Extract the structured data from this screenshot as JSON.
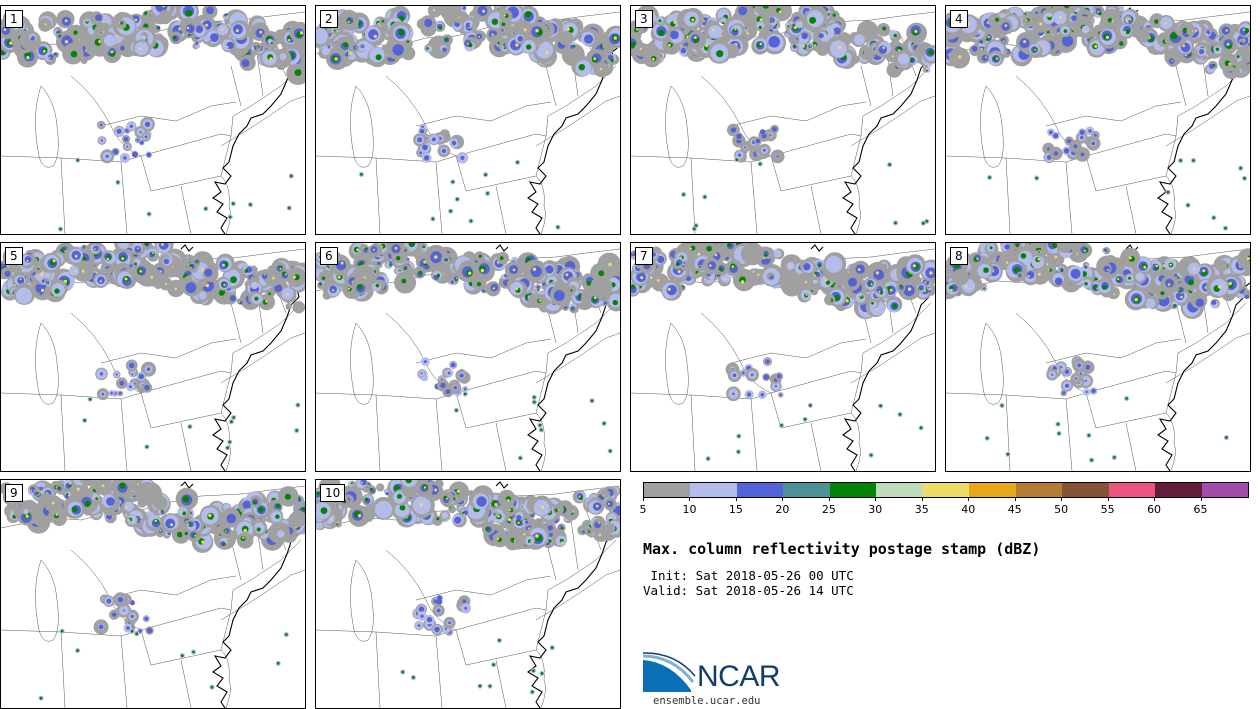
{
  "panels": [
    {
      "label": "1",
      "seed": 11
    },
    {
      "label": "2",
      "seed": 23
    },
    {
      "label": "3",
      "seed": 37
    },
    {
      "label": "4",
      "seed": 41
    },
    {
      "label": "5",
      "seed": 53
    },
    {
      "label": "6",
      "seed": 67
    },
    {
      "label": "7",
      "seed": 79
    },
    {
      "label": "8",
      "seed": 83
    },
    {
      "label": "9",
      "seed": 97
    },
    {
      "label": "10",
      "seed": 101
    }
  ],
  "colorbar": {
    "colors": [
      "#a0a0a0",
      "#b4bcec",
      "#5464d6",
      "#4c9296",
      "#048404",
      "#bcdcbc",
      "#ecdc6a",
      "#e8a81c",
      "#b47c34",
      "#845434",
      "#ec5480",
      "#641c3c",
      "#a44cac"
    ],
    "ticks": [
      "5",
      "10",
      "15",
      "20",
      "25",
      "30",
      "35",
      "40",
      "45",
      "50",
      "55",
      "60",
      "65"
    ]
  },
  "title": "Max. column reflectivity postage stamp (dBZ)",
  "init": " Init: Sat 2018-05-26 00 UTC",
  "valid": "Valid: Sat 2018-05-26 14 UTC",
  "logo": {
    "name": "NCAR",
    "url": "ensemble.ucar.edu",
    "colors": {
      "blue": "#0a6fb5",
      "navy": "#123c6b",
      "arc": "#7fb0d8"
    }
  }
}
